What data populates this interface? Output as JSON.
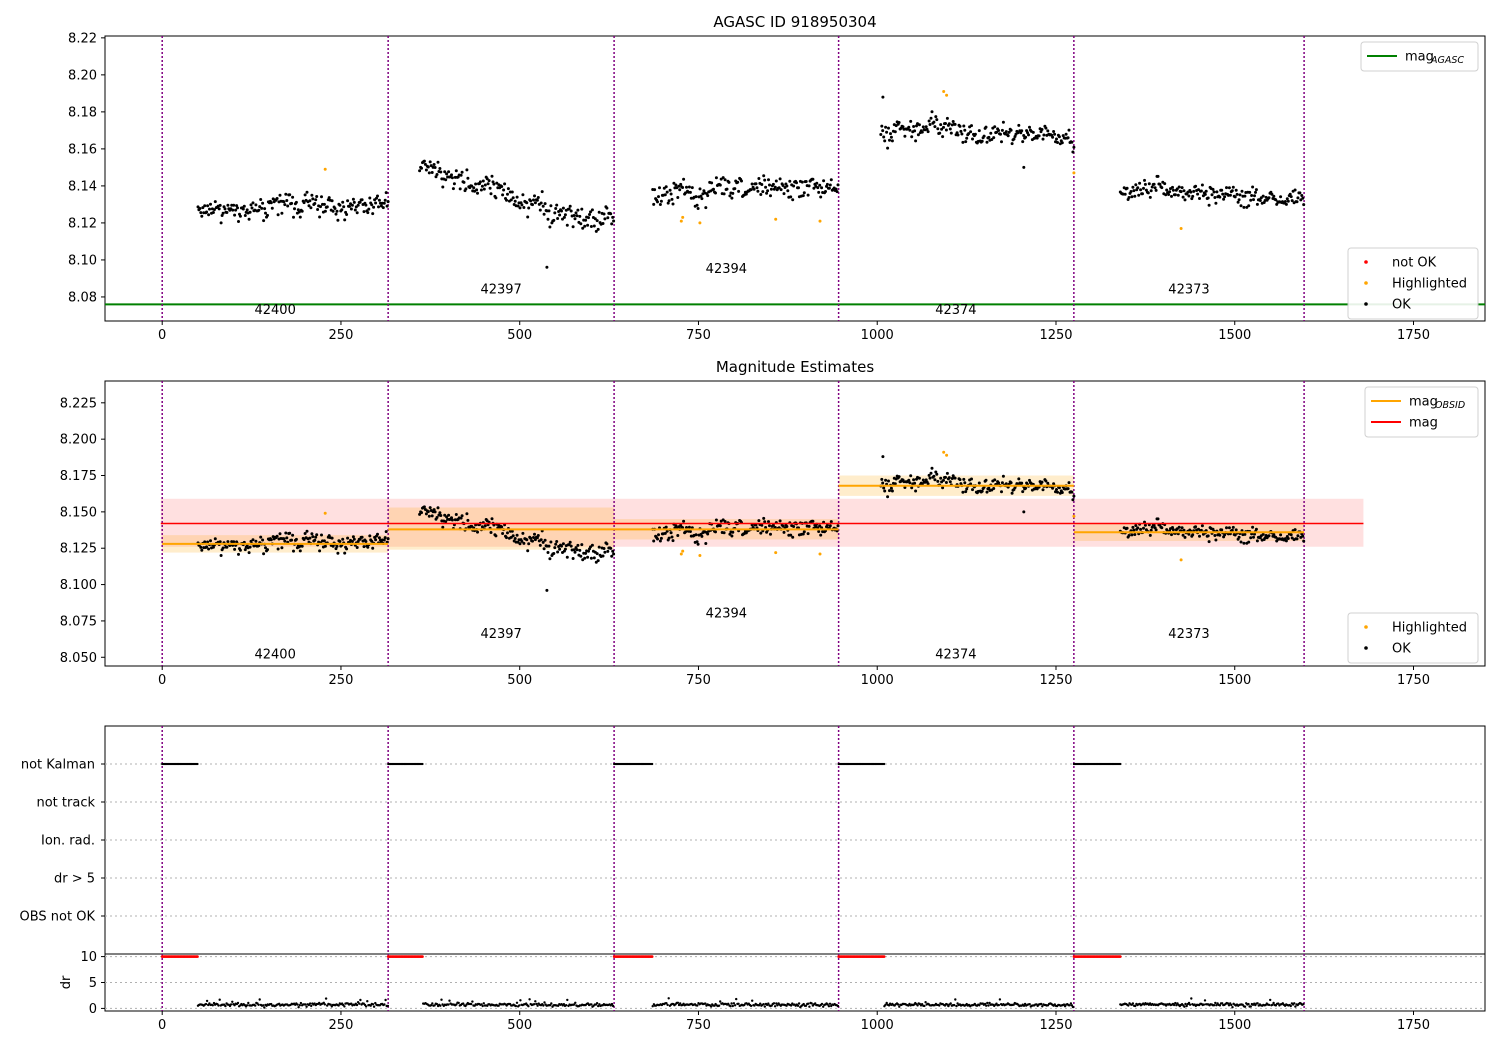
{
  "chart_data": [
    {
      "type": "scatter",
      "title": "AGASC ID 918950304",
      "xlim": [
        -80,
        1850
      ],
      "ylim": [
        8.067,
        8.221
      ],
      "xticks": [
        0,
        250,
        500,
        750,
        1000,
        1250,
        1500,
        1750
      ],
      "yticks": [
        8.08,
        8.1,
        8.12,
        8.14,
        8.16,
        8.18,
        8.2,
        8.22
      ],
      "ytick_labels": [
        "8.08",
        "8.10",
        "8.12",
        "8.14",
        "8.16",
        "8.18",
        "8.20",
        "8.22"
      ],
      "obsid_boundaries": [
        0,
        316,
        632,
        946,
        1275,
        1597
      ],
      "obsid_labels": [
        {
          "text": "42400",
          "x": 158,
          "y": 8.073
        },
        {
          "text": "42397",
          "x": 474,
          "y": 8.084
        },
        {
          "text": "42394",
          "x": 789,
          "y": 8.095
        },
        {
          "text": "42374",
          "x": 1110,
          "y": 8.073
        },
        {
          "text": "42373",
          "x": 1436,
          "y": 8.084
        }
      ],
      "mag_agasc": 8.076,
      "mag_agasc_xrange": [
        -80,
        1850
      ],
      "ok_segments": [
        {
          "x0": 50,
          "x1": 316,
          "center": 8.128,
          "trend": 0.002,
          "spread": 0.0065
        },
        {
          "x0": 360,
          "x1": 632,
          "center": 8.135,
          "trend": -0.03,
          "spread": 0.007
        },
        {
          "x0": 686,
          "x1": 946,
          "center": 8.138,
          "trend": 0.004,
          "spread": 0.0065
        },
        {
          "x0": 1005,
          "x1": 1275,
          "center": 8.168,
          "trend": -0.006,
          "spread": 0.006
        },
        {
          "x0": 1340,
          "x1": 1597,
          "center": 8.136,
          "trend": -0.002,
          "spread": 0.0065
        }
      ],
      "highlighted_points": [
        [
          228,
          8.149
        ],
        [
          726,
          8.121
        ],
        [
          728,
          8.123
        ],
        [
          752,
          8.12
        ],
        [
          858,
          8.122
        ],
        [
          920,
          8.121
        ],
        [
          1093,
          8.191
        ],
        [
          1097,
          8.189
        ],
        [
          1275,
          8.147
        ],
        [
          1425,
          8.117
        ]
      ],
      "outliers": [
        [
          538,
          8.096
        ],
        [
          1008,
          8.188
        ],
        [
          1205,
          8.15
        ]
      ],
      "legend_upper": [
        {
          "label": "mag",
          "sub": "AGASC",
          "color": "#008000"
        }
      ],
      "legend_lower": [
        {
          "label": "not OK",
          "color": "#ff0000"
        },
        {
          "label": "Highlighted",
          "color": "#ffa500"
        },
        {
          "label": "OK",
          "color": "#000000"
        }
      ]
    },
    {
      "type": "scatter",
      "title": "Magnitude Estimates",
      "xlim": [
        -80,
        1850
      ],
      "ylim": [
        8.044,
        8.24
      ],
      "xticks": [
        0,
        250,
        500,
        750,
        1000,
        1250,
        1500,
        1750
      ],
      "yticks": [
        8.05,
        8.075,
        8.1,
        8.125,
        8.15,
        8.175,
        8.2,
        8.225
      ],
      "ytick_labels": [
        "8.050",
        "8.075",
        "8.100",
        "8.125",
        "8.150",
        "8.175",
        "8.200",
        "8.225"
      ],
      "obsid_labels": [
        {
          "text": "42400",
          "x": 158,
          "y": 8.052
        },
        {
          "text": "42397",
          "x": 474,
          "y": 8.066
        },
        {
          "text": "42394",
          "x": 789,
          "y": 8.08
        },
        {
          "text": "42374",
          "x": 1110,
          "y": 8.052
        },
        {
          "text": "42373",
          "x": 1436,
          "y": 8.066
        }
      ],
      "mag": 8.142,
      "mag_band": [
        8.126,
        8.159
      ],
      "mag_xrange": [
        -2,
        1680
      ],
      "mag_obsid": [
        {
          "x0": 0,
          "x1": 316,
          "value": 8.128,
          "band": [
            8.122,
            8.134
          ]
        },
        {
          "x0": 316,
          "x1": 632,
          "value": 8.138,
          "band": [
            8.124,
            8.153
          ]
        },
        {
          "x0": 632,
          "x1": 946,
          "value": 8.138,
          "band": [
            8.131,
            8.145
          ]
        },
        {
          "x0": 946,
          "x1": 1275,
          "value": 8.168,
          "band": [
            8.161,
            8.175
          ]
        },
        {
          "x0": 1275,
          "x1": 1597,
          "value": 8.136,
          "band": [
            8.13,
            8.142
          ]
        }
      ],
      "legend_upper": [
        {
          "label": "mag",
          "sub": "OBSID",
          "color": "#ffa500"
        },
        {
          "label": "mag",
          "sub": "",
          "color": "#ff0000"
        }
      ],
      "legend_lower": [
        {
          "label": "Highlighted",
          "color": "#ffa500"
        },
        {
          "label": "OK",
          "color": "#000000"
        }
      ]
    },
    {
      "type": "scatter",
      "title": "",
      "xlim": [
        -80,
        1850
      ],
      "xticks": [
        0,
        250,
        500,
        750,
        1000,
        1250,
        1500,
        1750
      ],
      "flag_rows": [
        "not Kalman",
        "not track",
        "Ion. rad.",
        "dr > 5",
        "OBS not OK"
      ],
      "not_kalman_ranges": [
        [
          0,
          50
        ],
        [
          316,
          365
        ],
        [
          632,
          686
        ],
        [
          946,
          1010
        ],
        [
          1275,
          1340
        ]
      ],
      "dr_ylabel": "dr",
      "dr_ylim": [
        -0.5,
        10.5
      ],
      "dr_yticks": [
        0,
        5,
        10
      ],
      "dr_ytick_labels": [
        "0",
        "5",
        "10"
      ],
      "dr_clipped_value": 10,
      "dr_clipped_ranges": [
        [
          0,
          50
        ],
        [
          316,
          365
        ],
        [
          632,
          686
        ],
        [
          946,
          1010
        ],
        [
          1275,
          1340
        ]
      ],
      "dr_ok_ranges": [
        [
          50,
          316
        ],
        [
          365,
          632
        ],
        [
          686,
          946
        ],
        [
          1010,
          1275
        ],
        [
          1340,
          1597
        ]
      ],
      "dr_typical": 0.7
    }
  ],
  "colors": {
    "ok": "#000000",
    "highlighted": "#ffa500",
    "not_ok": "#ff0000",
    "obsid_line": "#800080",
    "agasc": "#008000",
    "mag": "#ff0000",
    "mag_obsid": "#ffa500"
  }
}
